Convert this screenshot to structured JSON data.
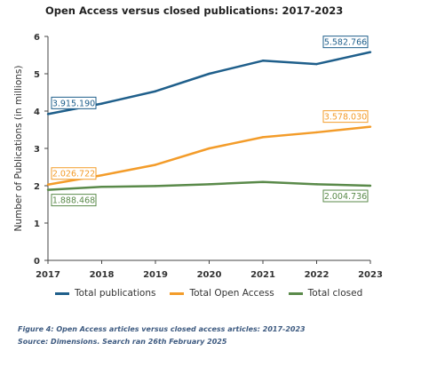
{
  "chart_data": {
    "type": "line",
    "title": "Open Access versus closed publications: 2017-2023",
    "ylabel": "Number of Publications (in millions)",
    "xlabel": "",
    "x": [
      "2017",
      "2018",
      "2019",
      "2020",
      "2021",
      "2022",
      "2023"
    ],
    "ylim": [
      0,
      6
    ],
    "yticks": [
      "0",
      "1",
      "2",
      "3",
      "4",
      "5",
      "6"
    ],
    "grid": false,
    "legend_position": "bottom",
    "series": [
      {
        "name": "Total publications",
        "color": "#1f5f8b",
        "values": [
          3.92,
          4.2,
          4.53,
          5.0,
          5.35,
          5.26,
          5.58
        ],
        "labels": [
          {
            "index": 0,
            "text": "3.915.190"
          },
          {
            "index": 6,
            "text": "5.582.766"
          }
        ]
      },
      {
        "name": "Total Open Access",
        "color": "#f39c2a",
        "values": [
          2.03,
          2.28,
          2.56,
          3.0,
          3.3,
          3.43,
          3.58
        ],
        "labels": [
          {
            "index": 0,
            "text": "2.026.722"
          },
          {
            "index": 6,
            "text": "3.578.030"
          }
        ]
      },
      {
        "name": "Total closed",
        "color": "#5a8a4a",
        "values": [
          1.89,
          1.97,
          1.99,
          2.04,
          2.1,
          2.04,
          2.0
        ],
        "labels": [
          {
            "index": 0,
            "text": "1.888.468"
          },
          {
            "index": 6,
            "text": "2.004.736"
          }
        ]
      }
    ]
  },
  "caption": {
    "figure": "Figure 4: Open Access articles versus closed access articles: 2017-2023",
    "source": "Source: Dimensions. Search ran 26th February 2025"
  }
}
